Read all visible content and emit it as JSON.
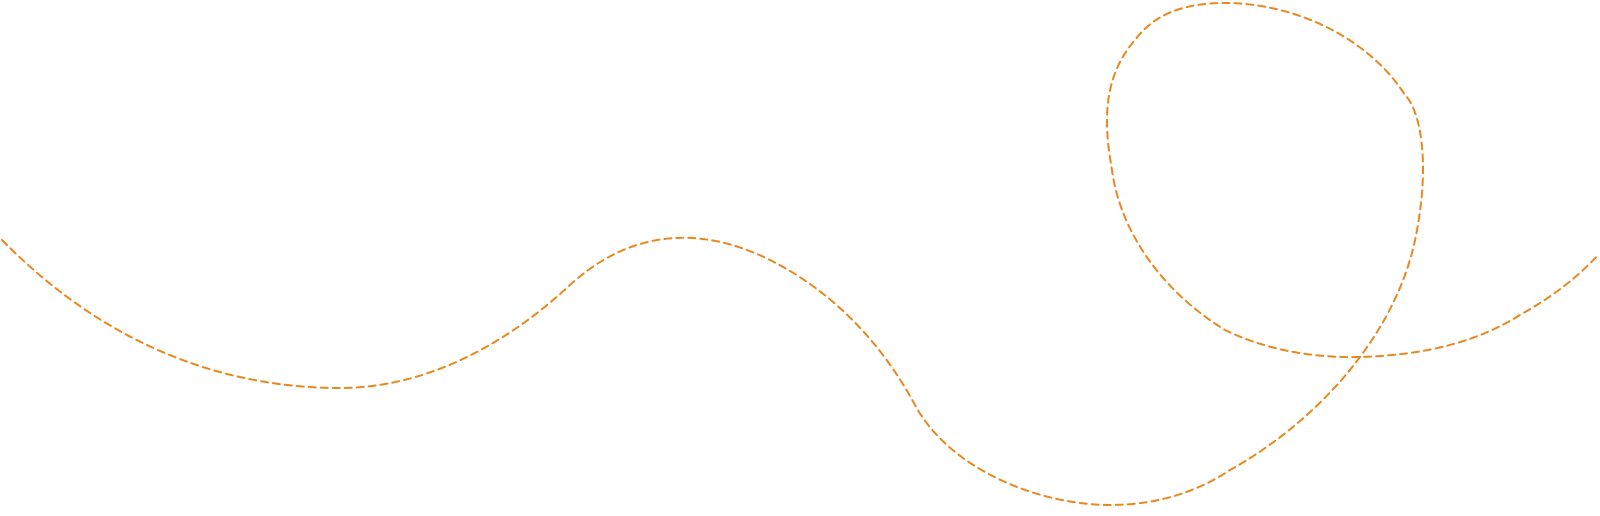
{
  "decoration": {
    "name": "dashed-loop-path",
    "stroke_color": "#E8881E",
    "style": "dashed"
  }
}
